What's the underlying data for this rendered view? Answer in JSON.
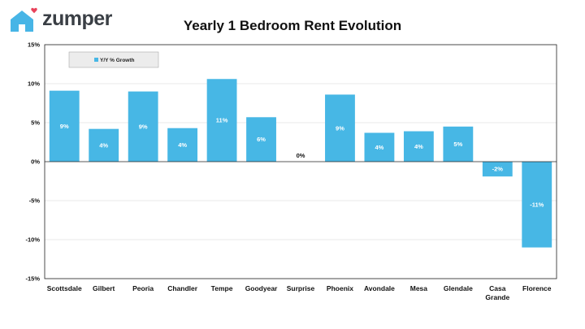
{
  "brand": {
    "name": "zumper",
    "logo_color": "#3a3f45",
    "icon_color": "#47b5e6",
    "heart_color": "#e8425a"
  },
  "colors": {
    "bar": "#47b7e5",
    "grid": "#e3e3e3",
    "axis": "#222222"
  },
  "chart_data": {
    "type": "bar",
    "title": "Yearly 1 Bedroom Rent Evolution",
    "legend": {
      "position": "top-left",
      "entries": [
        "Y/Y % Growth"
      ]
    },
    "categories": [
      "Scottsdale",
      "Gilbert",
      "Peoria",
      "Chandler",
      "Tempe",
      "Goodyear",
      "Surprise",
      "Phoenix",
      "Avondale",
      "Mesa",
      "Glendale",
      "Casa Grande",
      "Florence"
    ],
    "series": [
      {
        "name": "Y/Y % Growth",
        "values": [
          9.1,
          4.2,
          9.0,
          4.3,
          10.6,
          5.7,
          0.0,
          8.6,
          3.7,
          3.9,
          4.5,
          -1.9,
          -11.0
        ],
        "labels": [
          "9%",
          "4%",
          "9%",
          "4%",
          "11%",
          "6%",
          "0%",
          "9%",
          "4%",
          "4%",
          "5%",
          "-2%",
          "-11%"
        ]
      }
    ],
    "ylim": [
      -15,
      15
    ],
    "yticks": [
      15,
      10,
      5,
      0,
      -5,
      -10,
      -15
    ],
    "ytick_labels": [
      "15%",
      "10%",
      "5%",
      "0%",
      "-5%",
      "-10%",
      "-15%"
    ],
    "grid": true
  }
}
